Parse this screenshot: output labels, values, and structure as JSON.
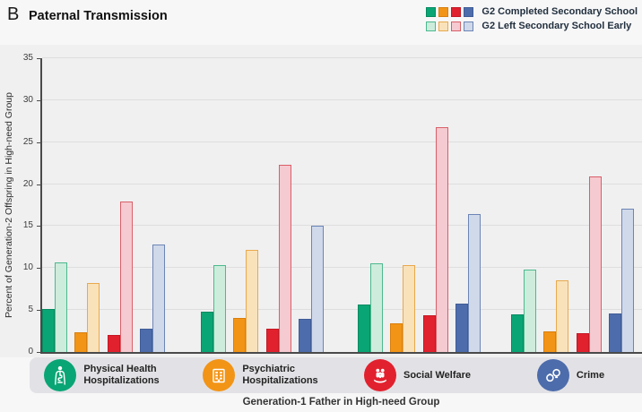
{
  "chart_data": {
    "type": "bar",
    "panel": "B",
    "title": "Paternal Transmission",
    "xlabel": "Generation-1 Father in High-need Group",
    "ylabel": "Percent of Generation-2 Offspring in High-need Group",
    "ylim": [
      0,
      35
    ],
    "yticks": [
      0,
      5,
      10,
      15,
      20,
      25,
      30,
      35
    ],
    "grid": "horizontal",
    "legend_position": "top-right",
    "legend": [
      {
        "label": "G2 Completed Secondary School",
        "variant": "solid"
      },
      {
        "label": "G2 Left Secondary School Early",
        "variant": "light"
      }
    ],
    "palette": {
      "green": {
        "solid": "#0aa574",
        "solid_border": "#078a61",
        "light": "#cdecdb",
        "light_border": "#4cb98e"
      },
      "orange": {
        "solid": "#f29416",
        "solid_border": "#d97f0e",
        "light": "#f9e2ba",
        "light_border": "#e9a94d"
      },
      "red": {
        "solid": "#e2212e",
        "solid_border": "#c41824",
        "light": "#f5cad0",
        "light_border": "#d95f68"
      },
      "blue": {
        "solid": "#4d6cab",
        "solid_border": "#3f5c96",
        "light": "#d0d9ea",
        "light_border": "#6c85b5"
      }
    },
    "categories": [
      {
        "label_lines": [
          "Physical Health",
          "Hospitalizations"
        ],
        "icon": "physical-health-icon",
        "icon_color": "#0aa574"
      },
      {
        "label_lines": [
          "Psychiatric",
          "Hospitalizations"
        ],
        "icon": "psychiatric-hospital-icon",
        "icon_color": "#f29416"
      },
      {
        "label_lines": [
          "Social Welfare"
        ],
        "icon": "social-welfare-icon",
        "icon_color": "#e2212e"
      },
      {
        "label_lines": [
          "Crime"
        ],
        "icon": "crime-handcuffs-icon",
        "icon_color": "#4d6cab"
      }
    ],
    "series": [
      {
        "name": "Physical Health Hospitalizations - G2 Completed Secondary School",
        "color": "green",
        "variant": "solid",
        "values": [
          5.1,
          4.8,
          5.7,
          4.5
        ]
      },
      {
        "name": "Physical Health Hospitalizations - G2 Left Secondary School Early",
        "color": "green",
        "variant": "light",
        "values": [
          10.7,
          10.4,
          10.6,
          9.8
        ]
      },
      {
        "name": "Psychiatric Hospitalizations - G2 Completed Secondary School",
        "color": "orange",
        "variant": "solid",
        "values": [
          2.4,
          4.1,
          3.4,
          2.5
        ]
      },
      {
        "name": "Psychiatric Hospitalizations - G2 Left Secondary School Early",
        "color": "orange",
        "variant": "light",
        "values": [
          8.2,
          12.2,
          10.3,
          8.5
        ]
      },
      {
        "name": "Social Welfare - G2 Completed Secondary School",
        "color": "red",
        "variant": "solid",
        "values": [
          2.0,
          2.8,
          4.4,
          2.2
        ]
      },
      {
        "name": "Social Welfare - G2 Left Secondary School Early",
        "color": "red",
        "variant": "light",
        "values": [
          17.9,
          22.3,
          26.8,
          20.9
        ]
      },
      {
        "name": "Crime - G2 Completed Secondary School",
        "color": "blue",
        "variant": "solid",
        "values": [
          2.8,
          3.9,
          5.8,
          4.6
        ]
      },
      {
        "name": "Crime - G2 Left Secondary School Early",
        "color": "blue",
        "variant": "light",
        "values": [
          12.8,
          15.0,
          16.4,
          17.1
        ]
      }
    ]
  }
}
